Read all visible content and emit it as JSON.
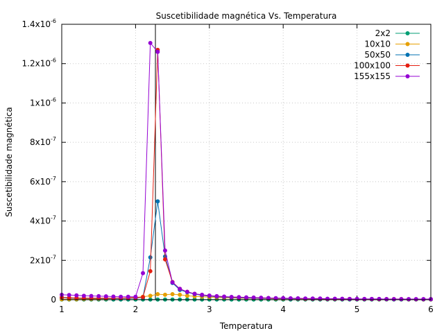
{
  "chart_data": {
    "type": "line",
    "title": "Suscetibilidade magnética Vs. Temperatura",
    "xlabel": "Temperatura",
    "ylabel": "Suscetibilidade magnética",
    "xlim": [
      1,
      6
    ],
    "ylim": [
      0,
      1.4e-06
    ],
    "grid": true,
    "legend_position": "top-right",
    "x_ticks": [
      {
        "value": 1,
        "label": "1"
      },
      {
        "value": 2,
        "label": "2"
      },
      {
        "value": 3,
        "label": "3"
      },
      {
        "value": 4,
        "label": "4"
      },
      {
        "value": 5,
        "label": "5"
      },
      {
        "value": 6,
        "label": "6"
      }
    ],
    "y_ticks": [
      {
        "value": 0,
        "mantissa": "0",
        "exponent": ""
      },
      {
        "value": 2e-07,
        "mantissa": "2x10",
        "exponent": "-7"
      },
      {
        "value": 4e-07,
        "mantissa": "4x10",
        "exponent": "-7"
      },
      {
        "value": 6e-07,
        "mantissa": "6x10",
        "exponent": "-7"
      },
      {
        "value": 8e-07,
        "mantissa": "8x10",
        "exponent": "-7"
      },
      {
        "value": 1e-06,
        "mantissa": "1x10",
        "exponent": "-6"
      },
      {
        "value": 1.2e-06,
        "mantissa": "1.2x10",
        "exponent": "-6"
      },
      {
        "value": 1.4e-06,
        "mantissa": "1.4x10",
        "exponent": "-6"
      }
    ],
    "vertical_marker": 2.269,
    "x": [
      1,
      1.1,
      1.2,
      1.3,
      1.4,
      1.5,
      1.6,
      1.7,
      1.8,
      1.9,
      2.0,
      2.1,
      2.2,
      2.3,
      2.4,
      2.5,
      2.6,
      2.7,
      2.8,
      2.9,
      3.0,
      3.1,
      3.2,
      3.3,
      3.4,
      3.5,
      3.6,
      3.7,
      3.8,
      3.9,
      4.0,
      4.1,
      4.2,
      4.3,
      4.4,
      4.5,
      4.6,
      4.7,
      4.8,
      4.9,
      5.0,
      5.1,
      5.2,
      5.3,
      5.4,
      5.5,
      5.6,
      5.7,
      5.8,
      5.9,
      6.0
    ],
    "series": [
      {
        "name": "2x2",
        "color": "#009e73",
        "values": [
          1e-09,
          1e-09,
          1e-09,
          1e-09,
          1e-09,
          1e-09,
          1e-09,
          1e-09,
          1e-09,
          1e-09,
          1e-09,
          1e-09,
          1e-09,
          1e-09,
          1e-09,
          1e-09,
          1e-09,
          1e-09,
          1e-09,
          1e-09,
          1e-09,
          1e-09,
          1e-09,
          1e-09,
          1e-09,
          1e-09,
          1e-09,
          1e-09,
          1e-09,
          1e-09,
          1e-09,
          1e-09,
          1e-09,
          1e-09,
          1e-09,
          1e-09,
          1e-09,
          1e-09,
          1e-09,
          1e-09,
          1e-09,
          1e-09,
          1e-09,
          1e-09,
          1e-09,
          1e-09,
          1e-09,
          1e-09,
          1e-09,
          1e-09,
          1e-09
        ]
      },
      {
        "name": "10x10",
        "color": "#e69f00",
        "values": [
          2e-09,
          2e-09,
          2e-09,
          3e-09,
          3e-09,
          4e-09,
          5e-09,
          6e-09,
          8e-09,
          1e-08,
          1.2e-08,
          1.5e-08,
          2e-08,
          2.8e-08,
          2.5e-08,
          2.8e-08,
          2.5e-08,
          2e-08,
          1.7e-08,
          1.5e-08,
          1.3e-08,
          1.1e-08,
          1e-08,
          9e-09,
          8e-09,
          7e-09,
          7e-09,
          6e-09,
          6e-09,
          5e-09,
          5e-09,
          5e-09,
          4e-09,
          4e-09,
          4e-09,
          4e-09,
          3e-09,
          3e-09,
          3e-09,
          3e-09,
          3e-09,
          3e-09,
          3e-09,
          2e-09,
          2e-09,
          2e-09,
          2e-09,
          2e-09,
          2e-09,
          2e-09,
          2e-09
        ]
      },
      {
        "name": "50x50",
        "color": "#0072b2",
        "values": [
          1e-08,
          8e-09,
          7e-09,
          6e-09,
          6e-09,
          6e-09,
          6e-09,
          6e-09,
          6e-09,
          7e-09,
          8e-09,
          1.2e-08,
          2.15e-07,
          5e-07,
          2.2e-07,
          8.5e-08,
          5e-08,
          3.8e-08,
          2.8e-08,
          2.2e-08,
          1.8e-08,
          1.5e-08,
          1.3e-08,
          1.1e-08,
          1e-08,
          9e-09,
          8e-09,
          7e-09,
          7e-09,
          6e-09,
          6e-09,
          5e-09,
          5e-09,
          5e-09,
          4e-09,
          4e-09,
          4e-09,
          4e-09,
          3e-09,
          3e-09,
          3e-09,
          3e-09,
          3e-09,
          3e-09,
          3e-09,
          2e-09,
          2e-09,
          2e-09,
          2e-09,
          2e-09,
          2e-09
        ]
      },
      {
        "name": "100x100",
        "color": "#e51e10",
        "values": [
          1.2e-08,
          1e-08,
          9e-09,
          8e-09,
          8e-09,
          8e-09,
          8e-09,
          8e-09,
          8e-09,
          9e-09,
          1e-08,
          1.3e-08,
          1.45e-07,
          1.27e-06,
          2.05e-07,
          9e-08,
          5.5e-08,
          4e-08,
          3e-08,
          2.4e-08,
          2e-08,
          1.7e-08,
          1.5e-08,
          1.3e-08,
          1.2e-08,
          1.1e-08,
          1e-08,
          9e-09,
          8e-09,
          7e-09,
          7e-09,
          6e-09,
          6e-09,
          5e-09,
          5e-09,
          5e-09,
          4e-09,
          4e-09,
          4e-09,
          4e-09,
          3e-09,
          3e-09,
          3e-09,
          3e-09,
          3e-09,
          3e-09,
          3e-09,
          2e-09,
          2e-09,
          2e-09,
          2e-09
        ]
      },
      {
        "name": "155x155",
        "color": "#9400d3",
        "values": [
          2.5e-08,
          2.4e-08,
          2.2e-08,
          2e-08,
          1.9e-08,
          1.8e-08,
          1.7e-08,
          1.6e-08,
          1.5e-08,
          1.5e-08,
          1.5e-08,
          1.35e-07,
          1.305e-06,
          1.26e-06,
          2.5e-07,
          8.8e-08,
          5.5e-08,
          4e-08,
          3e-08,
          2.5e-08,
          2.1e-08,
          1.8e-08,
          1.6e-08,
          1.4e-08,
          1.3e-08,
          1.2e-08,
          1.1e-08,
          1e-08,
          9e-09,
          8e-09,
          8e-09,
          7e-09,
          7e-09,
          6e-09,
          6e-09,
          6e-09,
          5e-09,
          5e-09,
          5e-09,
          4e-09,
          4e-09,
          4e-09,
          4e-09,
          4e-09,
          3e-09,
          3e-09,
          3e-09,
          3e-09,
          3e-09,
          3e-09,
          3e-09
        ]
      }
    ]
  }
}
